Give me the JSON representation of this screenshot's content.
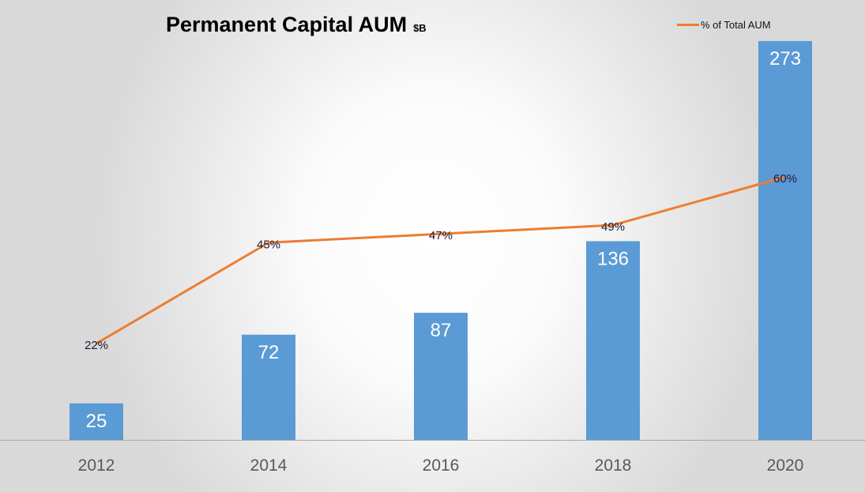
{
  "title": "Permanent Capital AUM",
  "title_unit": "$B",
  "legend": {
    "line_label": "% of Total AUM"
  },
  "colors": {
    "bar": "#5b9bd5",
    "line": "#ed7d31",
    "axis": "#a6a6a6"
  },
  "chart_data": {
    "type": "bar",
    "categories": [
      "2012",
      "2014",
      "2016",
      "2018",
      "2020"
    ],
    "series": [
      {
        "type": "bar",
        "values": [
          25,
          72,
          87,
          136,
          273
        ],
        "labels": [
          "25",
          "72",
          "87",
          "136",
          "273"
        ]
      },
      {
        "type": "line",
        "name": "% of Total AUM",
        "values": [
          22,
          45,
          47,
          49,
          60
        ],
        "labels": [
          "22%",
          "45%",
          "47%",
          "49%",
          "60%"
        ]
      }
    ],
    "ylim": [
      0,
      300
    ],
    "y2lim": [
      0,
      100
    ],
    "grid": false,
    "legend_position": "top-right"
  }
}
